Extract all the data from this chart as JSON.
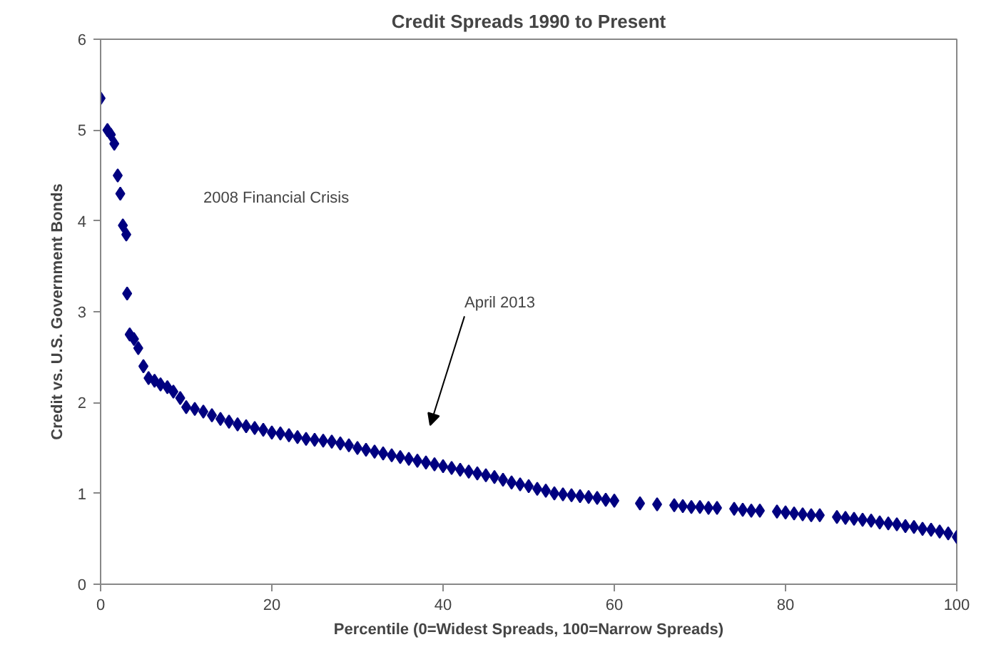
{
  "chart_data": {
    "type": "scatter",
    "title": "Credit Spreads 1990 to Present",
    "xlabel": "Percentile (0=Widest Spreads, 100=Narrow Spreads)",
    "ylabel": "Credit vs. U.S. Government Bonds",
    "x": [
      0,
      0.8,
      1.2,
      1.6,
      2.0,
      2.3,
      2.6,
      3.0,
      3.1,
      3.4,
      3.9,
      4.4,
      5.0,
      5.6,
      6.3,
      7.0,
      7.8,
      8.5,
      9.3,
      10,
      11,
      12,
      13,
      14,
      15,
      16,
      17,
      18,
      19,
      20,
      21,
      22,
      23,
      24,
      25,
      26,
      27,
      28,
      29,
      30,
      31,
      32,
      33,
      34,
      35,
      36,
      37,
      38,
      39,
      40,
      41,
      42,
      43,
      44,
      45,
      46,
      47,
      48,
      49,
      50,
      51,
      52,
      53,
      54,
      55,
      56,
      57,
      58,
      59,
      60,
      63,
      65,
      67,
      68,
      69,
      70,
      71,
      72,
      74,
      75,
      76,
      77,
      79,
      80,
      81,
      82,
      83,
      84,
      86,
      87,
      88,
      89,
      90,
      91,
      92,
      93,
      94,
      95,
      96,
      97,
      98,
      99,
      100
    ],
    "series": [
      {
        "color": "#000080",
        "values": [
          5.35,
          5.0,
          4.95,
          4.85,
          4.5,
          4.3,
          3.95,
          3.85,
          3.2,
          2.75,
          2.7,
          2.6,
          2.4,
          2.27,
          2.24,
          2.2,
          2.17,
          2.12,
          2.05,
          1.95,
          1.93,
          1.9,
          1.86,
          1.82,
          1.79,
          1.76,
          1.74,
          1.72,
          1.7,
          1.67,
          1.66,
          1.64,
          1.62,
          1.6,
          1.59,
          1.58,
          1.57,
          1.55,
          1.53,
          1.5,
          1.48,
          1.46,
          1.44,
          1.42,
          1.4,
          1.38,
          1.36,
          1.34,
          1.32,
          1.3,
          1.28,
          1.26,
          1.24,
          1.22,
          1.2,
          1.18,
          1.15,
          1.12,
          1.1,
          1.08,
          1.05,
          1.03,
          1.0,
          0.99,
          0.98,
          0.97,
          0.96,
          0.95,
          0.93,
          0.92,
          0.89,
          0.88,
          0.87,
          0.86,
          0.85,
          0.85,
          0.84,
          0.84,
          0.83,
          0.82,
          0.81,
          0.81,
          0.8,
          0.79,
          0.78,
          0.77,
          0.76,
          0.76,
          0.74,
          0.73,
          0.72,
          0.71,
          0.7,
          0.68,
          0.67,
          0.66,
          0.64,
          0.63,
          0.61,
          0.6,
          0.58,
          0.56,
          0.52
        ]
      }
    ],
    "xlim": [
      0,
      100
    ],
    "ylim": [
      0,
      6
    ],
    "xticks": [
      0,
      20,
      40,
      60,
      80,
      100
    ],
    "yticks": [
      0,
      1,
      2,
      3,
      4,
      5,
      6
    ],
    "grid": false,
    "marker": "diamond",
    "annotations": [
      "2008 Financial Crisis",
      "April 2013"
    ]
  }
}
